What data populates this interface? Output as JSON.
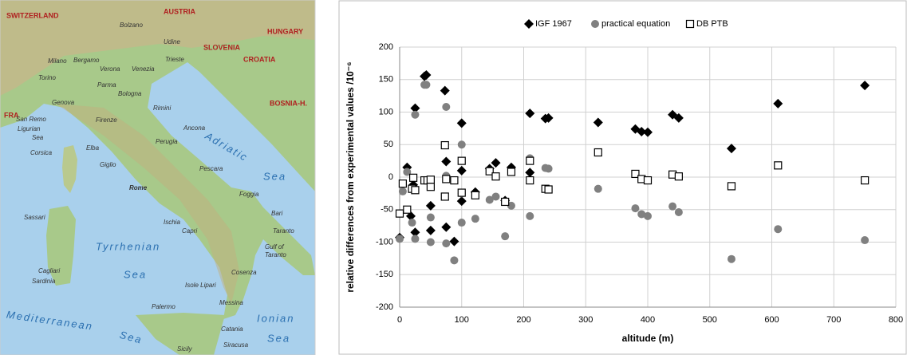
{
  "map": {
    "labels": [
      "SWITZERLAND",
      "AUSTRIA",
      "HUNGARY",
      "SLOVENIA",
      "CROATIA",
      "BOSNIA-H.",
      "FRA",
      "Bolzano",
      "Udine",
      "Torino",
      "Milano",
      "Bergamo",
      "Verona",
      "Venezia",
      "Trieste",
      "Genova",
      "Parma",
      "Bologna",
      "San Remo",
      "Ligurian",
      "Sea",
      "Corsica",
      "Elba",
      "Firenze",
      "Rimini",
      "Ancona",
      "Perugia",
      "Giglio",
      "Adriatic",
      "Sea",
      "Pescara",
      "Rome",
      "Foggia",
      "Bari",
      "Taranto",
      "Sassari",
      "Ischia",
      "Capri",
      "Tyrrhenian",
      "Sea",
      "Cagliari",
      "Sardinia",
      "Gulf of",
      "Taranto",
      "Cosenza",
      "Isole Lipari",
      "Mediterranean",
      "Sea",
      "Palermo",
      "Messina",
      "Catania",
      "Siracusa",
      "Sicily",
      "Ionian",
      "Sea"
    ]
  },
  "chart_data": {
    "type": "scatter",
    "xlabel": "altitude (m)",
    "ylabel": "relative differences from experimental values /10⁻⁶",
    "xlim": [
      0,
      800
    ],
    "xticks": [
      0,
      100,
      200,
      300,
      400,
      500,
      600,
      700,
      800
    ],
    "ylim": [
      -200,
      200
    ],
    "yticks": [
      -200,
      -150,
      -100,
      -50,
      0,
      50,
      100,
      150,
      200
    ],
    "grid": true,
    "legend": "top",
    "series": [
      {
        "name": "IGF 1967",
        "color": "#000000",
        "marker": "diamond",
        "x": [
          0,
          12,
          18,
          22,
          25,
          25,
          40,
          43,
          50,
          50,
          73,
          75,
          75,
          88,
          100,
          100,
          100,
          122,
          145,
          155,
          170,
          180,
          210,
          210,
          235,
          240,
          320,
          380,
          390,
          400,
          440,
          450,
          535,
          610,
          750
        ],
        "values": [
          -93,
          15,
          -60,
          -12,
          106,
          -85,
          155,
          157,
          -44,
          -82,
          133,
          24,
          -77,
          -99,
          83,
          10,
          -37,
          -23,
          13,
          22,
          -36,
          15,
          98,
          7,
          90,
          91,
          84,
          74,
          70,
          69,
          96,
          91,
          44,
          113,
          141
        ]
      },
      {
        "name": "practical equation",
        "color": "#808080",
        "marker": "circle",
        "x": [
          0,
          5,
          12,
          20,
          25,
          25,
          40,
          43,
          50,
          50,
          75,
          75,
          75,
          88,
          100,
          100,
          100,
          122,
          145,
          155,
          170,
          180,
          210,
          210,
          235,
          240,
          320,
          380,
          390,
          400,
          440,
          450,
          535,
          610,
          750
        ],
        "values": [
          -95,
          -22,
          8,
          -70,
          96,
          -95,
          142,
          142,
          -62,
          -100,
          108,
          2,
          -102,
          -128,
          50,
          -25,
          -70,
          -64,
          -35,
          -30,
          -91,
          -44,
          29,
          -60,
          14,
          13,
          -18,
          -48,
          -57,
          -60,
          -45,
          -54,
          -126,
          -80,
          -97
        ]
      },
      {
        "name": "DB PTB",
        "color": "#000000",
        "marker": "square",
        "x": [
          0,
          5,
          12,
          20,
          22,
          25,
          40,
          45,
          50,
          50,
          73,
          73,
          75,
          88,
          100,
          100,
          122,
          145,
          155,
          170,
          180,
          210,
          210,
          235,
          240,
          320,
          380,
          390,
          400,
          440,
          450,
          535,
          610,
          750
        ],
        "values": [
          -56,
          -10,
          -50,
          -18,
          -1,
          -20,
          -5,
          -5,
          -4,
          -15,
          49,
          -30,
          -3,
          -5,
          25,
          -24,
          -28,
          9,
          1,
          -38,
          8,
          25,
          -5,
          -18,
          -19,
          38,
          5,
          -3,
          -5,
          4,
          1,
          -14,
          18,
          -5
        ]
      }
    ]
  }
}
